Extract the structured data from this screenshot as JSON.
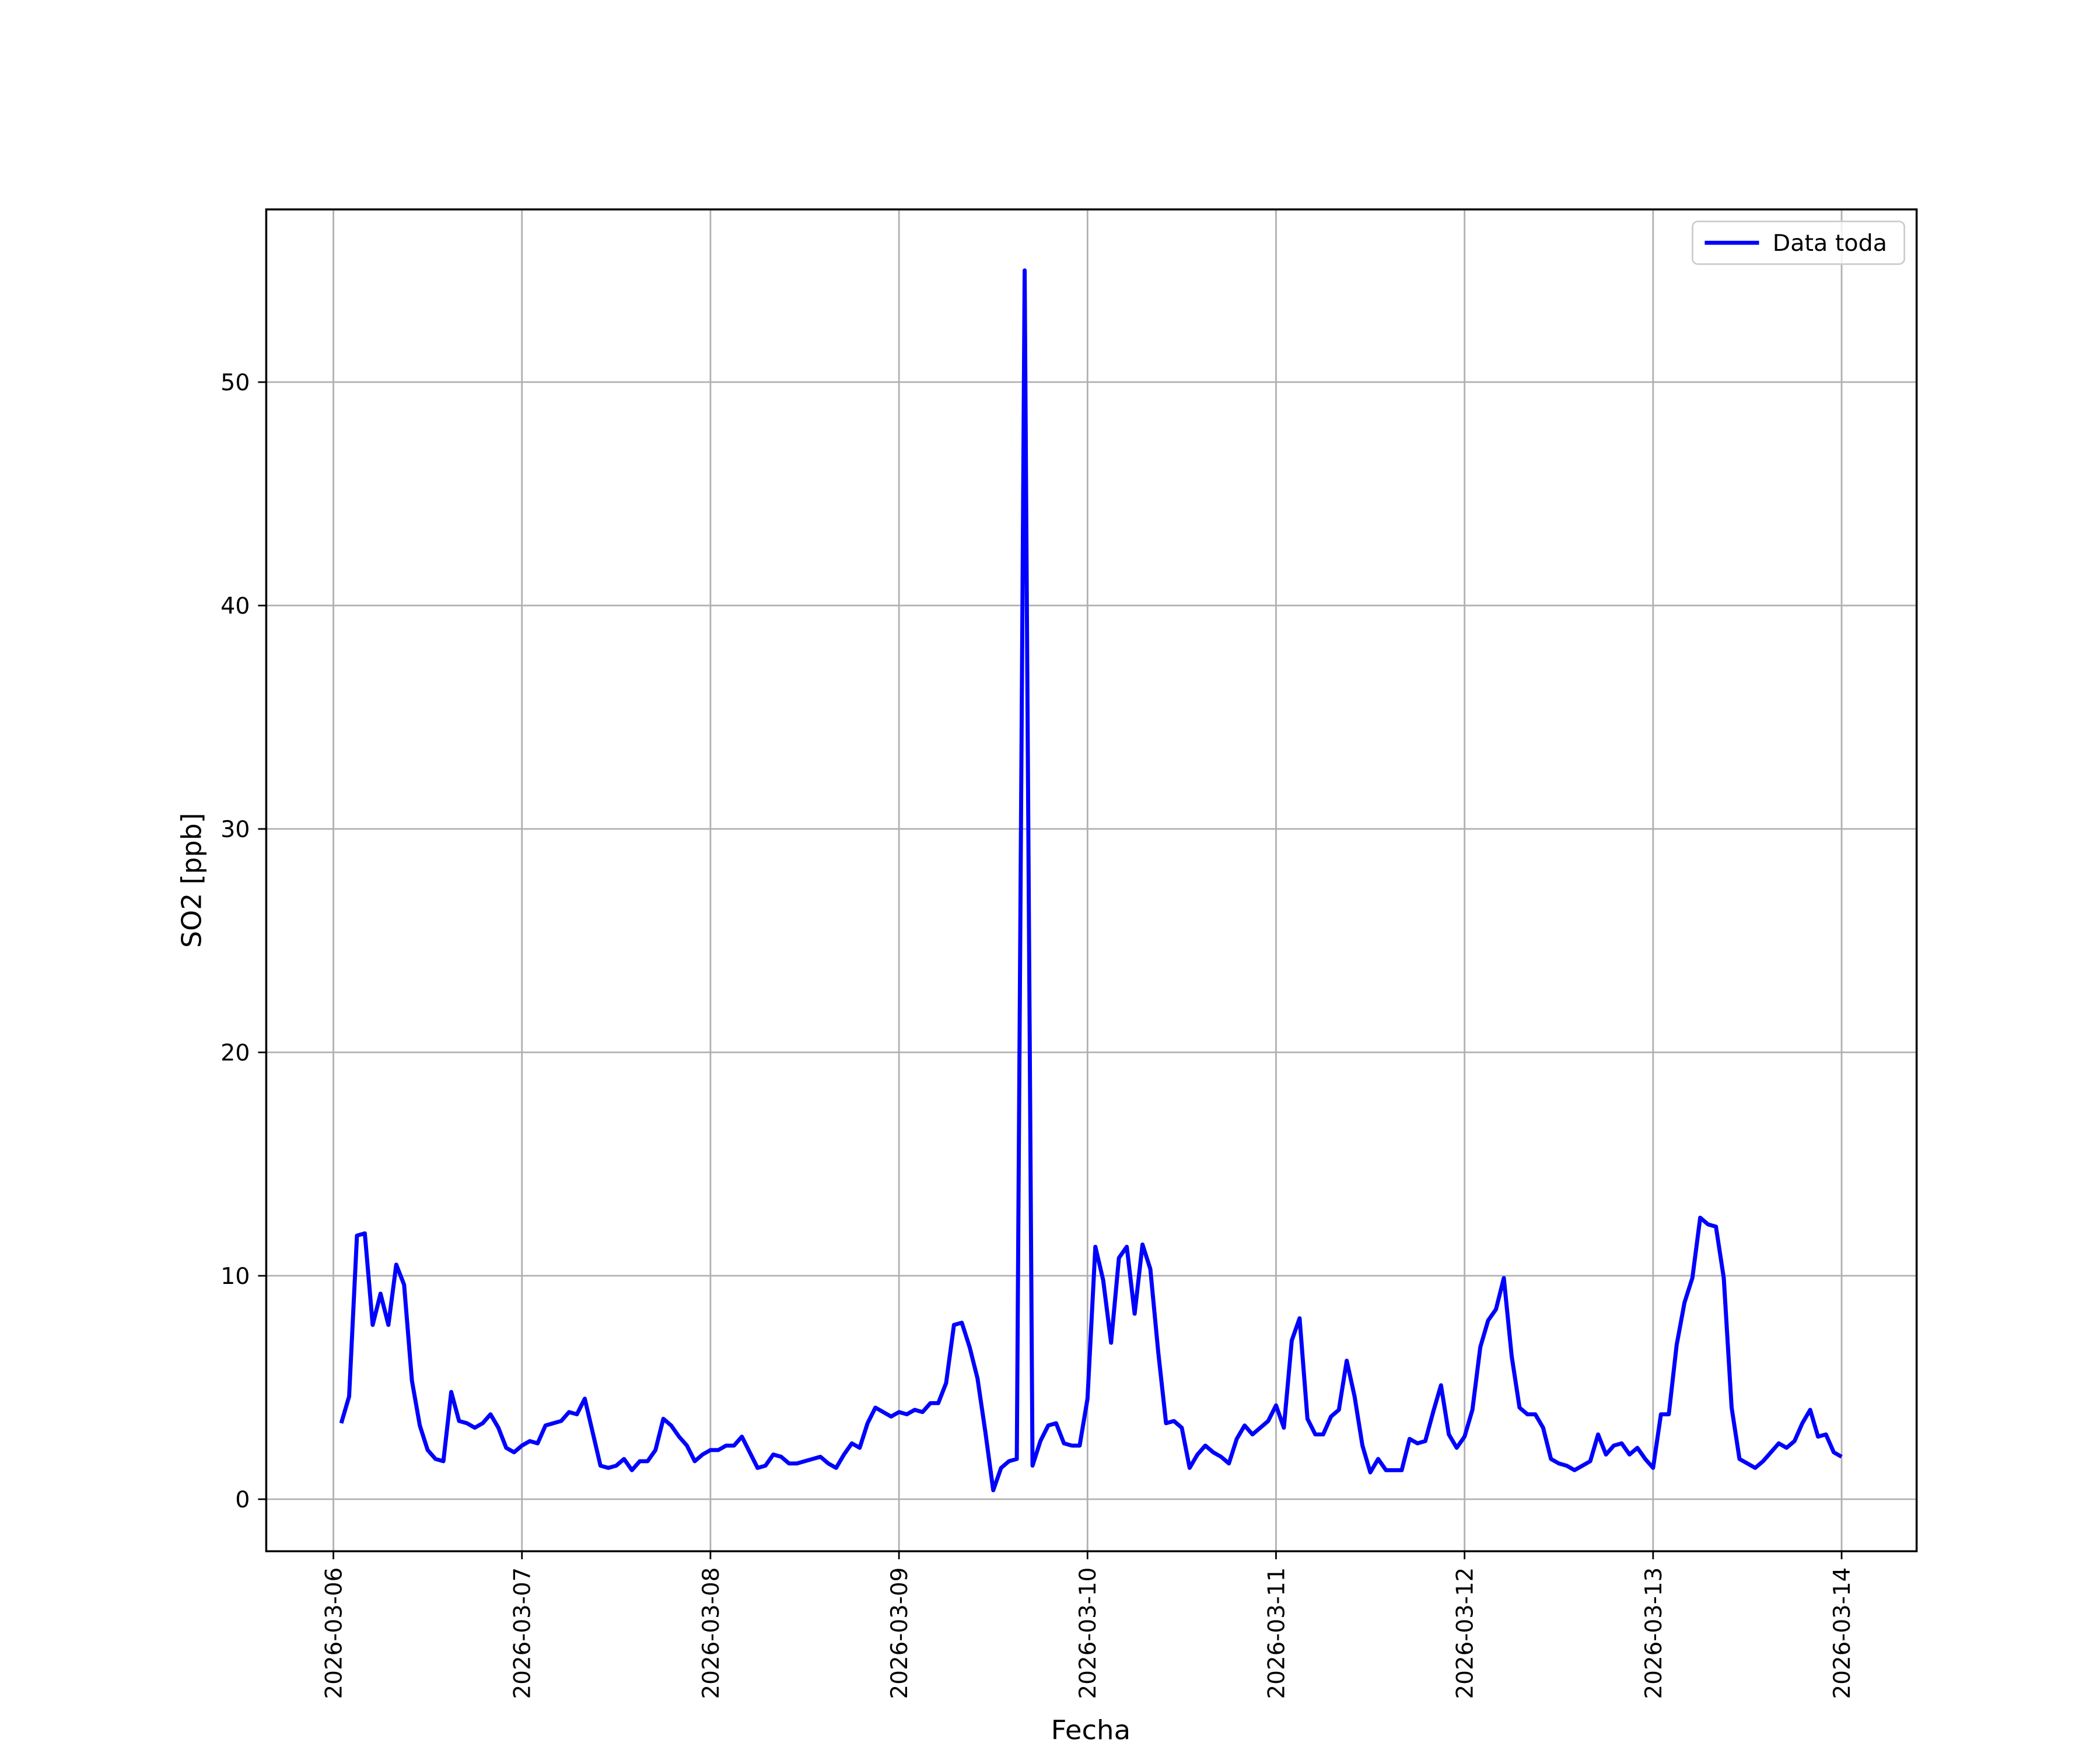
{
  "chart_data": {
    "type": "line",
    "xlabel": "Fecha",
    "ylabel": "SO2 [ppb]",
    "x": [
      "2026-03-06T01:00",
      "2026-03-06T02:00",
      "2026-03-06T03:00",
      "2026-03-06T04:00",
      "2026-03-06T05:00",
      "2026-03-06T06:00",
      "2026-03-06T07:00",
      "2026-03-06T08:00",
      "2026-03-06T09:00",
      "2026-03-06T10:00",
      "2026-03-06T11:00",
      "2026-03-06T12:00",
      "2026-03-06T13:00",
      "2026-03-06T14:00",
      "2026-03-06T15:00",
      "2026-03-06T16:00",
      "2026-03-06T17:00",
      "2026-03-06T18:00",
      "2026-03-06T19:00",
      "2026-03-06T20:00",
      "2026-03-06T21:00",
      "2026-03-06T22:00",
      "2026-03-06T23:00",
      "2026-03-07T00:00",
      "2026-03-07T01:00",
      "2026-03-07T02:00",
      "2026-03-07T03:00",
      "2026-03-07T04:00",
      "2026-03-07T05:00",
      "2026-03-07T06:00",
      "2026-03-07T07:00",
      "2026-03-07T08:00",
      "2026-03-07T09:00",
      "2026-03-07T10:00",
      "2026-03-07T11:00",
      "2026-03-07T12:00",
      "2026-03-07T13:00",
      "2026-03-07T14:00",
      "2026-03-07T15:00",
      "2026-03-07T16:00",
      "2026-03-07T17:00",
      "2026-03-07T18:00",
      "2026-03-07T19:00",
      "2026-03-07T20:00",
      "2026-03-07T21:00",
      "2026-03-07T22:00",
      "2026-03-07T23:00",
      "2026-03-08T00:00",
      "2026-03-08T01:00",
      "2026-03-08T02:00",
      "2026-03-08T03:00",
      "2026-03-08T04:00",
      "2026-03-08T05:00",
      "2026-03-08T06:00",
      "2026-03-08T07:00",
      "2026-03-08T08:00",
      "2026-03-08T09:00",
      "2026-03-08T10:00",
      "2026-03-08T11:00",
      "2026-03-08T12:00",
      "2026-03-08T13:00",
      "2026-03-08T14:00",
      "2026-03-08T15:00",
      "2026-03-08T16:00",
      "2026-03-08T17:00",
      "2026-03-08T18:00",
      "2026-03-08T19:00",
      "2026-03-08T20:00",
      "2026-03-08T21:00",
      "2026-03-08T22:00",
      "2026-03-08T23:00",
      "2026-03-09T00:00",
      "2026-03-09T01:00",
      "2026-03-09T02:00",
      "2026-03-09T03:00",
      "2026-03-09T04:00",
      "2026-03-09T05:00",
      "2026-03-09T06:00",
      "2026-03-09T07:00",
      "2026-03-09T08:00",
      "2026-03-09T09:00",
      "2026-03-09T10:00",
      "2026-03-09T11:00",
      "2026-03-09T12:00",
      "2026-03-09T13:00",
      "2026-03-09T14:00",
      "2026-03-09T15:00",
      "2026-03-09T16:00",
      "2026-03-09T17:00",
      "2026-03-09T18:00",
      "2026-03-09T19:00",
      "2026-03-09T20:00",
      "2026-03-09T21:00",
      "2026-03-09T22:00",
      "2026-03-09T23:00",
      "2026-03-10T00:00",
      "2026-03-10T01:00",
      "2026-03-10T02:00",
      "2026-03-10T03:00",
      "2026-03-10T04:00",
      "2026-03-10T05:00",
      "2026-03-10T06:00",
      "2026-03-10T07:00",
      "2026-03-10T08:00",
      "2026-03-10T09:00",
      "2026-03-10T10:00",
      "2026-03-10T11:00",
      "2026-03-10T12:00",
      "2026-03-10T13:00",
      "2026-03-10T14:00",
      "2026-03-10T15:00",
      "2026-03-10T16:00",
      "2026-03-10T17:00",
      "2026-03-10T18:00",
      "2026-03-10T19:00",
      "2026-03-10T20:00",
      "2026-03-10T21:00",
      "2026-03-10T22:00",
      "2026-03-10T23:00",
      "2026-03-11T00:00",
      "2026-03-11T01:00",
      "2026-03-11T02:00",
      "2026-03-11T03:00",
      "2026-03-11T04:00",
      "2026-03-11T05:00",
      "2026-03-11T06:00",
      "2026-03-11T07:00",
      "2026-03-11T08:00",
      "2026-03-11T09:00",
      "2026-03-11T10:00",
      "2026-03-11T11:00",
      "2026-03-11T12:00",
      "2026-03-11T13:00",
      "2026-03-11T14:00",
      "2026-03-11T15:00",
      "2026-03-11T16:00",
      "2026-03-11T17:00",
      "2026-03-11T18:00",
      "2026-03-11T19:00",
      "2026-03-11T20:00",
      "2026-03-11T21:00",
      "2026-03-11T22:00",
      "2026-03-11T23:00",
      "2026-03-12T00:00",
      "2026-03-12T01:00",
      "2026-03-12T02:00",
      "2026-03-12T03:00",
      "2026-03-12T04:00",
      "2026-03-12T05:00",
      "2026-03-12T06:00",
      "2026-03-12T07:00",
      "2026-03-12T08:00",
      "2026-03-12T09:00",
      "2026-03-12T10:00",
      "2026-03-12T11:00",
      "2026-03-12T12:00",
      "2026-03-12T13:00",
      "2026-03-12T14:00",
      "2026-03-12T15:00",
      "2026-03-12T16:00",
      "2026-03-12T17:00",
      "2026-03-12T18:00",
      "2026-03-12T19:00",
      "2026-03-12T20:00",
      "2026-03-12T21:00",
      "2026-03-12T22:00",
      "2026-03-12T23:00",
      "2026-03-13T00:00",
      "2026-03-13T01:00",
      "2026-03-13T02:00",
      "2026-03-13T03:00",
      "2026-03-13T04:00",
      "2026-03-13T05:00",
      "2026-03-13T06:00",
      "2026-03-13T07:00",
      "2026-03-13T08:00",
      "2026-03-13T09:00",
      "2026-03-13T10:00",
      "2026-03-13T11:00",
      "2026-03-13T12:00",
      "2026-03-13T13:00",
      "2026-03-13T14:00",
      "2026-03-13T15:00",
      "2026-03-13T16:00",
      "2026-03-13T17:00",
      "2026-03-13T18:00",
      "2026-03-13T19:00",
      "2026-03-13T20:00",
      "2026-03-13T21:00",
      "2026-03-13T22:00",
      "2026-03-13T23:00",
      "2026-03-14T00:00"
    ],
    "series": [
      {
        "name": "Data toda",
        "color": "#0000ff",
        "values": [
          3.4,
          4.6,
          11.8,
          11.9,
          7.8,
          9.2,
          7.8,
          10.5,
          9.6,
          5.3,
          3.3,
          2.2,
          1.8,
          1.7,
          4.8,
          3.5,
          3.4,
          3.2,
          3.4,
          3.8,
          3.2,
          2.3,
          2.1,
          2.4,
          2.6,
          2.5,
          3.3,
          3.4,
          3.5,
          3.9,
          3.8,
          4.5,
          3.0,
          1.5,
          1.4,
          1.5,
          1.8,
          1.3,
          1.7,
          1.7,
          2.2,
          3.6,
          3.3,
          2.8,
          2.4,
          1.7,
          2.0,
          2.2,
          2.2,
          2.4,
          2.4,
          2.8,
          2.1,
          1.4,
          1.5,
          2.0,
          1.9,
          1.6,
          1.6,
          1.7,
          1.8,
          1.9,
          1.6,
          1.4,
          2.0,
          2.5,
          2.3,
          3.4,
          4.1,
          3.9,
          3.7,
          3.9,
          3.8,
          4.0,
          3.9,
          4.3,
          4.3,
          5.2,
          7.8,
          7.9,
          6.8,
          5.4,
          3.0,
          0.4,
          1.4,
          1.7,
          1.8,
          55.0,
          1.5,
          2.6,
          3.3,
          3.4,
          2.5,
          2.4,
          2.4,
          4.5,
          11.3,
          9.8,
          7.0,
          10.8,
          11.3,
          8.3,
          11.4,
          10.3,
          6.6,
          3.4,
          3.5,
          3.2,
          1.4,
          2.0,
          2.4,
          2.1,
          1.9,
          1.6,
          2.7,
          3.3,
          2.9,
          3.2,
          3.5,
          4.2,
          3.2,
          7.1,
          8.1,
          3.6,
          2.9,
          2.9,
          3.7,
          4.0,
          6.2,
          4.6,
          2.4,
          1.2,
          1.8,
          1.3,
          1.3,
          1.3,
          2.7,
          2.5,
          2.6,
          3.9,
          5.1,
          2.9,
          2.3,
          2.8,
          4.0,
          6.8,
          8.0,
          8.5,
          9.9,
          6.4,
          4.1,
          3.8,
          3.8,
          3.2,
          1.8,
          1.6,
          1.5,
          1.3,
          1.5,
          1.7,
          2.9,
          2.0,
          2.4,
          2.5,
          2.0,
          2.3,
          1.8,
          1.4,
          3.8,
          3.8,
          6.9,
          8.8,
          9.9,
          12.6,
          12.3,
          12.2,
          9.9,
          4.1,
          1.8,
          1.6,
          1.4,
          1.7,
          2.1,
          2.5,
          2.3,
          2.6,
          3.4,
          4.0,
          2.8,
          2.9,
          2.1,
          1.9
        ]
      }
    ],
    "xlim": [
      "2026-03-05T15:27",
      "2026-03-14T09:33"
    ],
    "xticks": [
      "2026-03-06",
      "2026-03-07",
      "2026-03-08",
      "2026-03-09",
      "2026-03-10",
      "2026-03-11",
      "2026-03-12",
      "2026-03-13",
      "2026-03-14"
    ],
    "ylim": [
      -2.33,
      57.73
    ],
    "yticks": [
      0,
      10,
      20,
      30,
      40,
      50
    ],
    "grid": true,
    "legend": "upper right"
  }
}
